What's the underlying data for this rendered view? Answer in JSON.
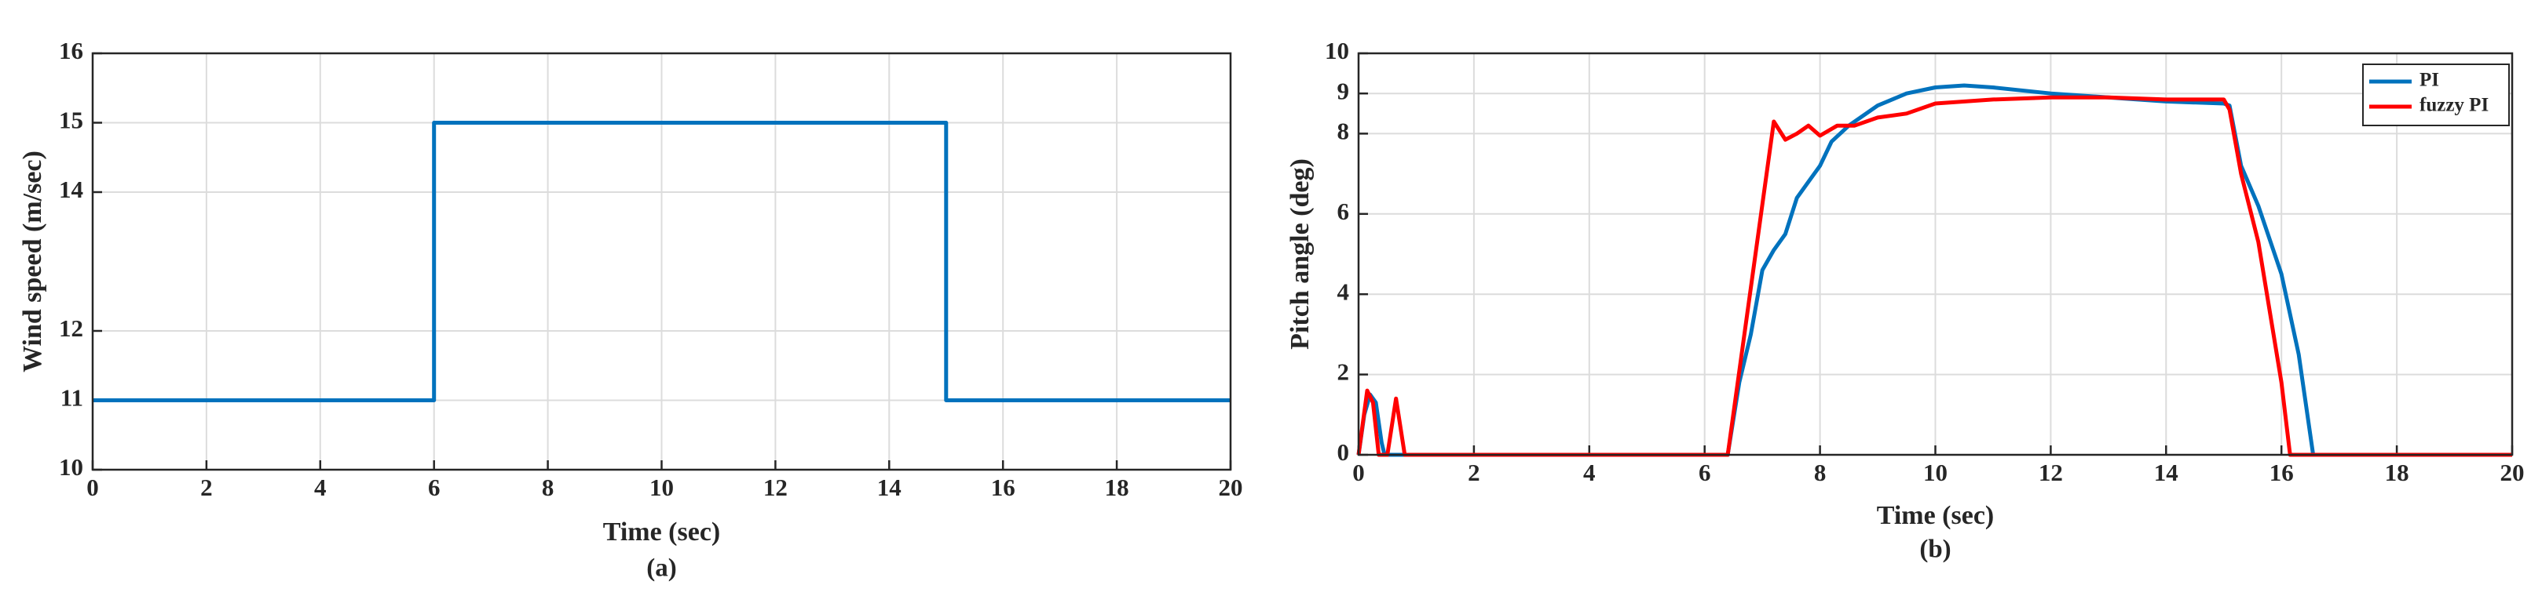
{
  "chart_data": [
    {
      "type": "line",
      "title": "(a)",
      "x_label": "Time (sec)",
      "y_label": "Wind speed (m/sec)",
      "xlim": [
        0,
        20
      ],
      "xticks": [
        0,
        2,
        4,
        6,
        8,
        10,
        12,
        14,
        16,
        18,
        20
      ],
      "ylim": [
        10,
        16
      ],
      "yticks": [
        10,
        11,
        12,
        14,
        15,
        16
      ],
      "grid": true,
      "series": [
        {
          "color": "#0072bd",
          "x": [
            0,
            6,
            6,
            15,
            15,
            20
          ],
          "values": [
            11,
            11,
            15,
            15,
            11,
            11
          ]
        }
      ]
    },
    {
      "type": "line",
      "title": "(b)",
      "x_label": "Time (sec)",
      "y_label": "Pitch angle (deg)",
      "xlim": [
        0,
        20
      ],
      "xticks": [
        0,
        2,
        4,
        6,
        8,
        10,
        12,
        14,
        16,
        18,
        20
      ],
      "ylim": [
        0,
        10
      ],
      "yticks": [
        0,
        2,
        4,
        6,
        8,
        9,
        10
      ],
      "grid": true,
      "legend": "top-right",
      "series": [
        {
          "name": "PI",
          "color": "#0072bd",
          "x": [
            0,
            0.1,
            0.2,
            0.3,
            0.4,
            0.45,
            6.4,
            6.6,
            6.8,
            7.0,
            7.2,
            7.4,
            7.6,
            7.8,
            8.0,
            8.2,
            8.5,
            9,
            9.5,
            10,
            10.5,
            11,
            12,
            13,
            14,
            15,
            15.1,
            15.3,
            15.6,
            16,
            16.3,
            16.55,
            20
          ],
          "values": [
            0,
            1.0,
            1.5,
            1.3,
            0.3,
            0,
            0,
            1.8,
            3,
            4.6,
            5.1,
            5.5,
            6.4,
            6.8,
            7.2,
            7.8,
            8.2,
            8.7,
            9.0,
            9.15,
            9.2,
            9.15,
            9.0,
            8.9,
            8.8,
            8.75,
            8.7,
            7.2,
            6.2,
            4.5,
            2.5,
            0,
            0
          ]
        },
        {
          "name": "fuzzy PI",
          "color": "#ff0000",
          "x": [
            0,
            0.15,
            0.25,
            0.35,
            0.5,
            0.65,
            0.8,
            6.4,
            7.2,
            7.4,
            7.6,
            7.8,
            8.0,
            8.3,
            8.6,
            9,
            9.5,
            10,
            11,
            12,
            13,
            14,
            15,
            15.1,
            15.3,
            15.6,
            16,
            16.15,
            20
          ],
          "values": [
            0,
            1.6,
            1.3,
            0,
            0,
            1.4,
            0,
            0,
            8.3,
            7.85,
            8.0,
            8.2,
            7.95,
            8.2,
            8.2,
            8.4,
            8.5,
            8.75,
            8.85,
            8.9,
            8.9,
            8.85,
            8.85,
            8.6,
            7.0,
            5.3,
            1.8,
            0,
            0
          ]
        }
      ]
    }
  ]
}
